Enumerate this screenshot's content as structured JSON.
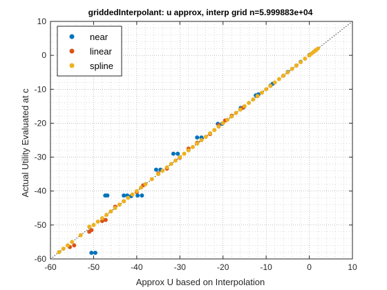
{
  "colors": {
    "near": "#0072BD",
    "linear": "#D95319",
    "spline": "#EDB120",
    "refline": "#000000",
    "grid": "#b0b0b0"
  },
  "chart_data": {
    "type": "scatter",
    "title": "griddedInterpolant: u approx, interp grid n=5.999883e+04",
    "xlabel": "Approx U based on Interpolation",
    "ylabel": "Actual Utility Evaluated at c",
    "xlim": [
      -60,
      10
    ],
    "ylim": [
      -60,
      10
    ],
    "xticks": [
      -60,
      -50,
      -40,
      -30,
      -20,
      -10,
      0,
      10
    ],
    "yticks": [
      -60,
      -50,
      -40,
      -30,
      -20,
      -10,
      0,
      10
    ],
    "xtick_labels": [
      "-60",
      "-50",
      "-40",
      "-30",
      "-20",
      "-10",
      "0",
      "10"
    ],
    "ytick_labels": [
      "-60",
      "-50",
      "-40",
      "-30",
      "-20",
      "-10",
      "0",
      "10"
    ],
    "grid": "minor-dotted",
    "legend_position": "top-left",
    "reference_line": {
      "style": "dotted",
      "from": [
        -60,
        -60
      ],
      "to": [
        10,
        10
      ]
    },
    "series": [
      {
        "name": "near",
        "points": [
          [
            -50.5,
            -58.2
          ],
          [
            -49.6,
            -58.2
          ],
          [
            -47.3,
            -41.3
          ],
          [
            -46.8,
            -41.3
          ],
          [
            -43.0,
            -41.3
          ],
          [
            -42.2,
            -41.3
          ],
          [
            -39.8,
            -41.3
          ],
          [
            -38.8,
            -41.3
          ],
          [
            -41.3,
            -41.5
          ],
          [
            -35.5,
            -33.7
          ],
          [
            -34.5,
            -33.7
          ],
          [
            -31.5,
            -29.0
          ],
          [
            -30.5,
            -29.0
          ],
          [
            -26.0,
            -24.2
          ],
          [
            -25.0,
            -24.2
          ],
          [
            -21.2,
            -20.2
          ],
          [
            -20.2,
            -20.2
          ],
          [
            -15.9,
            -15.5
          ],
          [
            -15.2,
            -15.3
          ],
          [
            -12.4,
            -11.8
          ],
          [
            -11.8,
            -11.5
          ],
          [
            -9.0,
            -8.9
          ],
          [
            -8.5,
            -8.4
          ],
          [
            -5.0,
            -4.9
          ],
          [
            -2.0,
            -1.9
          ],
          [
            0.0,
            0.1
          ]
        ]
      },
      {
        "name": "linear",
        "points": [
          [
            -55.5,
            -56.5
          ],
          [
            -54.5,
            -56.0
          ],
          [
            -51.0,
            -52.0
          ],
          [
            -50.5,
            -51.5
          ],
          [
            -48.0,
            -48.8
          ],
          [
            -47.2,
            -48.5
          ],
          [
            -45.0,
            -44.6
          ],
          [
            -43.0,
            -43.0
          ],
          [
            -40.0,
            -40.3
          ],
          [
            -38.5,
            -38.3
          ],
          [
            -35.0,
            -34.8
          ],
          [
            -33.0,
            -33.4
          ],
          [
            -30.0,
            -30.2
          ],
          [
            -28.0,
            -27.5
          ],
          [
            -26.0,
            -25.8
          ],
          [
            -23.0,
            -23.2
          ],
          [
            -21.0,
            -20.6
          ],
          [
            -19.5,
            -19.2
          ],
          [
            -18.0,
            -17.8
          ],
          [
            -15.5,
            -15.5
          ],
          [
            -12.0,
            -12.0
          ],
          [
            -9.0,
            -9.0
          ],
          [
            -6.0,
            -6.0
          ],
          [
            -3.0,
            -3.0
          ],
          [
            0.0,
            0.0
          ],
          [
            1.5,
            1.5
          ]
        ]
      },
      {
        "name": "spline",
        "points": [
          [
            -58.0,
            -58.0
          ],
          [
            -57.0,
            -57.0
          ],
          [
            -56.0,
            -56.0
          ],
          [
            -55.0,
            -55.0
          ],
          [
            -53.0,
            -53.0
          ],
          [
            -51.0,
            -50.5
          ],
          [
            -50.0,
            -50.0
          ],
          [
            -49.0,
            -49.0
          ],
          [
            -48.0,
            -48.0
          ],
          [
            -47.0,
            -47.0
          ],
          [
            -46.0,
            -46.0
          ],
          [
            -45.0,
            -45.0
          ],
          [
            -44.0,
            -44.0
          ],
          [
            -43.0,
            -43.0
          ],
          [
            -42.0,
            -42.0
          ],
          [
            -41.0,
            -41.0
          ],
          [
            -40.0,
            -40.0
          ],
          [
            -39.0,
            -39.0
          ],
          [
            -38.0,
            -38.0
          ],
          [
            -36.5,
            -36.5
          ],
          [
            -35.0,
            -35.0
          ],
          [
            -34.0,
            -34.0
          ],
          [
            -33.0,
            -33.0
          ],
          [
            -32.0,
            -32.0
          ],
          [
            -31.0,
            -31.0
          ],
          [
            -30.0,
            -30.0
          ],
          [
            -29.0,
            -29.0
          ],
          [
            -28.0,
            -28.0
          ],
          [
            -27.0,
            -27.0
          ],
          [
            -26.0,
            -26.0
          ],
          [
            -25.0,
            -25.0
          ],
          [
            -24.0,
            -24.0
          ],
          [
            -23.0,
            -23.0
          ],
          [
            -22.0,
            -22.0
          ],
          [
            -21.0,
            -21.0
          ],
          [
            -20.0,
            -20.0
          ],
          [
            -19.0,
            -19.0
          ],
          [
            -18.0,
            -18.0
          ],
          [
            -17.0,
            -17.0
          ],
          [
            -16.0,
            -16.0
          ],
          [
            -15.0,
            -15.0
          ],
          [
            -14.0,
            -14.0
          ],
          [
            -13.0,
            -13.0
          ],
          [
            -12.0,
            -12.0
          ],
          [
            -11.0,
            -11.0
          ],
          [
            -10.0,
            -10.0
          ],
          [
            -9.0,
            -9.0
          ],
          [
            -8.0,
            -8.0
          ],
          [
            -7.0,
            -7.0
          ],
          [
            -6.0,
            -6.0
          ],
          [
            -5.0,
            -5.0
          ],
          [
            -4.0,
            -4.0
          ],
          [
            -3.0,
            -3.0
          ],
          [
            -2.0,
            -2.0
          ],
          [
            -1.0,
            -1.0
          ],
          [
            0.0,
            0.0
          ],
          [
            0.5,
            0.5
          ],
          [
            1.0,
            1.0
          ],
          [
            1.5,
            1.5
          ],
          [
            2.0,
            2.0
          ]
        ]
      }
    ]
  }
}
